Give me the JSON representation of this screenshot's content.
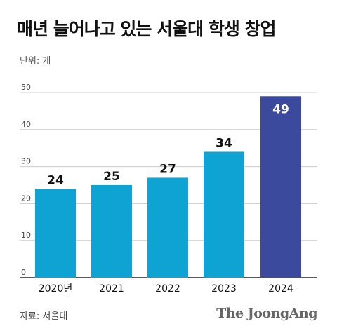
{
  "header": {
    "title": "매년 늘어나고 있는 서울대 학생 창업",
    "unit": "단위: 개"
  },
  "footer": {
    "source": "자료: 서울대",
    "brand": "The JoongAng"
  },
  "colors": {
    "bar": "#0fa3d3",
    "highlight": "#3b4a9c",
    "grid": "#cccccc",
    "axis": "#222222",
    "tick": "#444444"
  },
  "chart_data": {
    "type": "bar",
    "categories": [
      "2020년",
      "2021",
      "2022",
      "2023",
      "2024"
    ],
    "values": [
      24,
      25,
      27,
      34,
      49
    ],
    "highlight_index": 4,
    "ylim": [
      0,
      50
    ],
    "yticks": [
      0,
      10,
      20,
      30,
      40,
      50
    ],
    "grid": true,
    "title": "매년 늘어나고 있는 서울대 학생 창업",
    "ylabel": "단위: 개"
  }
}
